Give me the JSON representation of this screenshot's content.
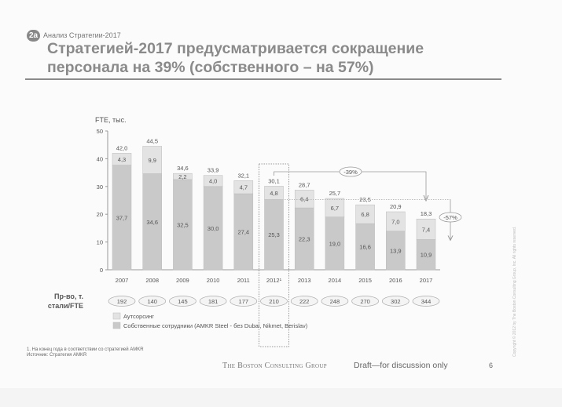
{
  "header": {
    "badge": "2a",
    "breadcrumb": "Анализ Стратегии-2017",
    "title": "Стратегией-2017 предусматривается сокращение персонала на 39% (собственного – на 57%)"
  },
  "chart_data": {
    "type": "bar",
    "stacked": true,
    "ylabel": "FTE, тыс.",
    "ylim": [
      0,
      50
    ],
    "yticks": [
      "0",
      "10",
      "20",
      "30",
      "40",
      "50"
    ],
    "categories": [
      "2007",
      "2008",
      "2009",
      "2010",
      "2011",
      "2012¹",
      "2013",
      "2014",
      "2015",
      "2016",
      "2017"
    ],
    "series": [
      {
        "name": "Собственные сотрудники (AMKR Steel - без Dubai, Nikmet, Berislav)",
        "color": "#c9c9c9",
        "values": [
          37.7,
          34.6,
          32.5,
          30.0,
          27.4,
          25.3,
          22.3,
          19.0,
          16.6,
          13.9,
          10.9
        ],
        "labels": [
          "37,7",
          "34,6",
          "32,5",
          "30,0",
          "27,4",
          "25,3",
          "22,3",
          "19,0",
          "16,6",
          "13,9",
          "10,9"
        ]
      },
      {
        "name": "Аутсорсинг",
        "color": "#e3e3e3",
        "values": [
          4.3,
          9.9,
          2.2,
          4.0,
          4.7,
          4.8,
          6.4,
          6.7,
          6.8,
          7.0,
          7.4
        ],
        "labels": [
          "4,3",
          "9,9",
          "2,2",
          "4,0",
          "4,7",
          "4,8",
          "6,4",
          "6,7",
          "6,8",
          "7,0",
          "7,4"
        ]
      }
    ],
    "totals": [
      "42,0",
      "44,5",
      "34,6",
      "33,9",
      "32,1",
      "30,1",
      "28,7",
      "25,7",
      "23,5",
      "20,9",
      "18,3"
    ],
    "annotations": [
      "-39%",
      "-57%"
    ],
    "highlighted_category": "2012¹",
    "productivity": {
      "label": "Пр-во, т. стали/FTE",
      "values": [
        "192",
        "140",
        "145",
        "181",
        "177",
        "210",
        "222",
        "248",
        "270",
        "302",
        "344"
      ]
    }
  },
  "footer": {
    "note": "1. На конец года в соответствии со стратегией AMKR",
    "source": "Источник: Стратегия AMKR",
    "company": "The Boston Consulting Group",
    "draft": "Draft—for discussion only",
    "page": "6",
    "copyright": "Copyright © 2012 by The Boston Consulting Group, Inc. All rights reserved."
  }
}
